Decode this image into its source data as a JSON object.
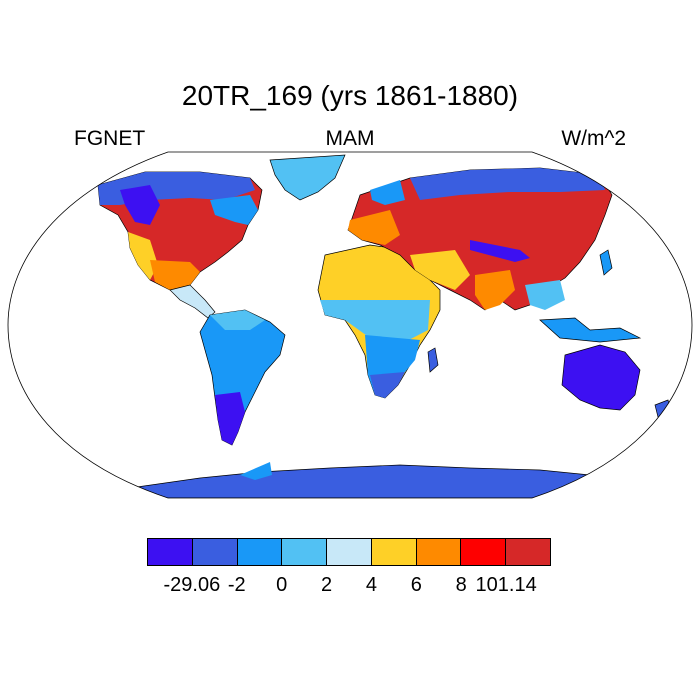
{
  "title": "20TR_169 (yrs 1861-1880)",
  "labels": {
    "left": "FGNET",
    "center": "MAM",
    "right": "W/m^2"
  },
  "colorbar": {
    "colors": [
      "#3d10f2",
      "#3a5ee0",
      "#1998f7",
      "#52c1f3",
      "#c8e8f8",
      "#fed027",
      "#fe8a00",
      "#fe0000",
      "#d62828"
    ],
    "tick_labels": [
      "-29.06",
      "-2",
      "0",
      "2",
      "4",
      "6",
      "8",
      "101.14"
    ]
  },
  "map": {
    "projection": "robinson",
    "ocean_color": "#ffffff",
    "coastline_color": "#000000"
  }
}
